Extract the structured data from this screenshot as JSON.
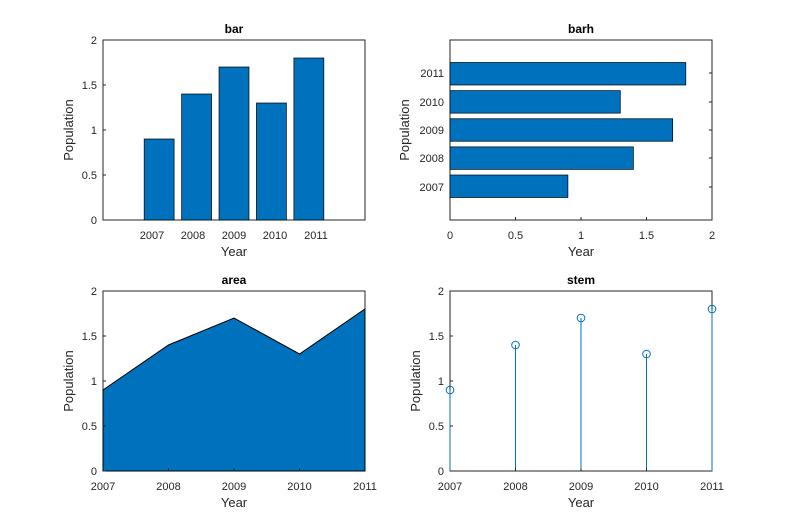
{
  "chart_data": [
    {
      "type": "bar",
      "title": "bar",
      "xlabel": "Year",
      "ylabel": "Population",
      "categories": [
        "2007",
        "2008",
        "2009",
        "2010",
        "2011"
      ],
      "values": [
        0.9,
        1.4,
        1.7,
        1.3,
        1.8
      ],
      "ylim": [
        0,
        2
      ],
      "yticks": [
        "0",
        "0.5",
        "1",
        "1.5",
        "2"
      ],
      "color": "#0072BD"
    },
    {
      "type": "barh",
      "title": "barh",
      "xlabel": "Year",
      "ylabel": "Population",
      "categories": [
        "2007",
        "2008",
        "2009",
        "2010",
        "2011"
      ],
      "values": [
        0.9,
        1.4,
        1.7,
        1.3,
        1.8
      ],
      "xlim": [
        0,
        2
      ],
      "xticks": [
        "0",
        "0.5",
        "1",
        "1.5",
        "2"
      ],
      "color": "#0072BD"
    },
    {
      "type": "area",
      "title": "area",
      "xlabel": "Year",
      "ylabel": "Population",
      "x": [
        "2007",
        "2008",
        "2009",
        "2010",
        "2011"
      ],
      "values": [
        0.9,
        1.4,
        1.7,
        1.3,
        1.8
      ],
      "ylim": [
        0,
        2
      ],
      "yticks": [
        "0",
        "0.5",
        "1",
        "1.5",
        "2"
      ],
      "color": "#0072BD"
    },
    {
      "type": "stem",
      "title": "stem",
      "xlabel": "Year",
      "ylabel": "Population",
      "x": [
        "2007",
        "2008",
        "2009",
        "2010",
        "2011"
      ],
      "values": [
        0.9,
        1.4,
        1.7,
        1.3,
        1.8
      ],
      "ylim": [
        0,
        2
      ],
      "yticks": [
        "0",
        "0.5",
        "1",
        "1.5",
        "2"
      ],
      "color": "#0072BD"
    }
  ]
}
